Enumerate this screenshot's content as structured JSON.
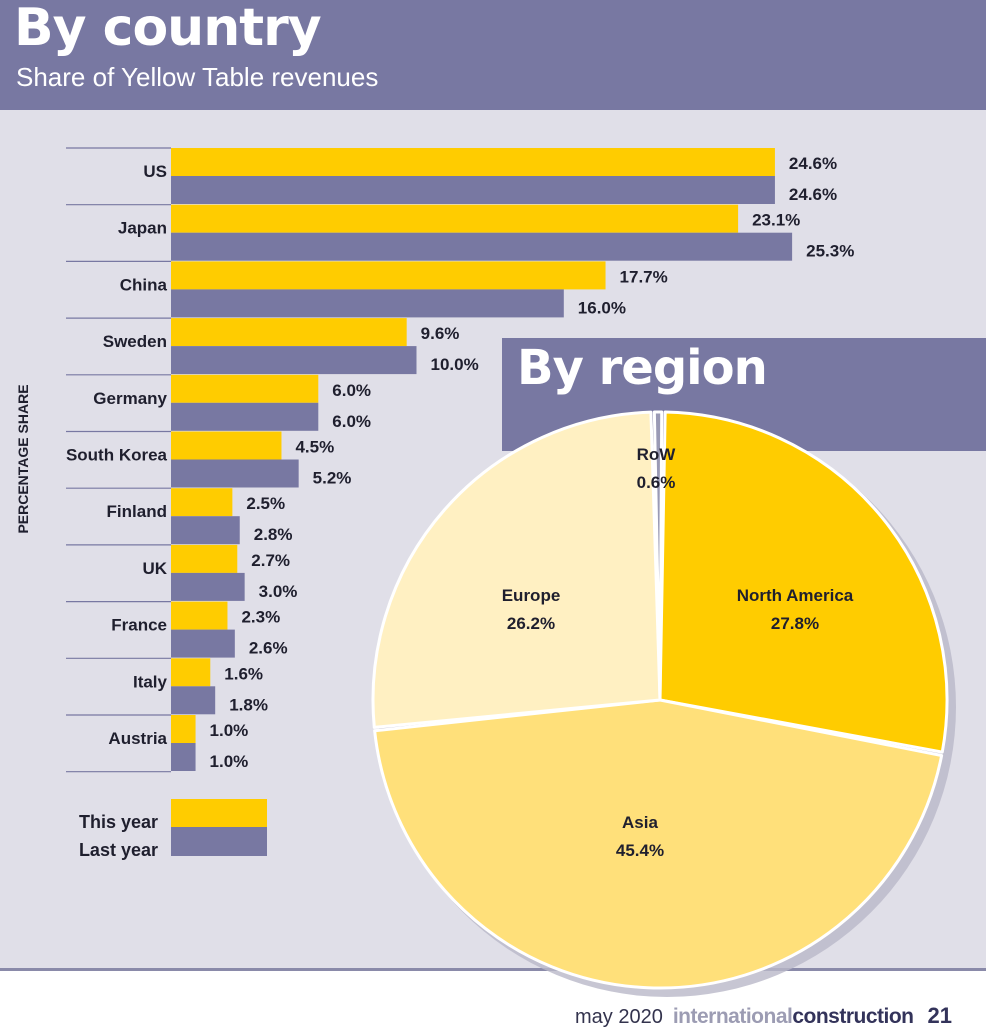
{
  "header": {
    "title": "By country",
    "subtitle": "Share of Yellow Table revenues"
  },
  "region_title": "By region",
  "footer": {
    "date": "may 2020",
    "brand_light": "international",
    "brand_dark": "construction",
    "page_number": "21"
  },
  "colors": {
    "this_year": "#ffcc00",
    "last_year": "#7878a2",
    "north_america": "#ffcc00",
    "asia": "#ffe07a",
    "europe": "#fff0c2",
    "row": "#9a9ab5"
  },
  "chart_data": [
    {
      "type": "bar",
      "orientation": "horizontal",
      "title": "By country",
      "subtitle": "Share of Yellow Table revenues",
      "ylabel": "PERCENTAGE SHARE",
      "categories": [
        "US",
        "Japan",
        "China",
        "Sweden",
        "Germany",
        "South Korea",
        "Finland",
        "UK",
        "France",
        "Italy",
        "Austria"
      ],
      "series": [
        {
          "name": "This year",
          "values": [
            24.6,
            23.1,
            17.7,
            9.6,
            6.0,
            4.5,
            2.5,
            2.7,
            2.3,
            1.6,
            1.0
          ],
          "labels": [
            "24.6%",
            "23.1%",
            "17.7%",
            "9.6%",
            "6.0%",
            "4.5%",
            "2.5%",
            "2.7%",
            "2.3%",
            "1.6%",
            "1.0%"
          ]
        },
        {
          "name": "Last year",
          "values": [
            24.6,
            25.3,
            16.0,
            10.0,
            6.0,
            5.2,
            2.8,
            3.0,
            2.6,
            1.8,
            1.0
          ],
          "labels": [
            "24.6%",
            "25.3%",
            "16.0%",
            "10.0%",
            "6.0%",
            "5.2%",
            "2.8%",
            "3.0%",
            "2.6%",
            "1.8%",
            "1.0%"
          ]
        }
      ],
      "legend": "bottom-left"
    },
    {
      "type": "pie",
      "title": "By region",
      "slices": [
        {
          "label": "North America",
          "value": 27.8,
          "text": "27.8%"
        },
        {
          "label": "Asia",
          "value": 45.4,
          "text": "45.4%"
        },
        {
          "label": "Europe",
          "value": 26.2,
          "text": "26.2%"
        },
        {
          "label": "RoW",
          "value": 0.6,
          "text": "0.6%"
        }
      ]
    }
  ]
}
